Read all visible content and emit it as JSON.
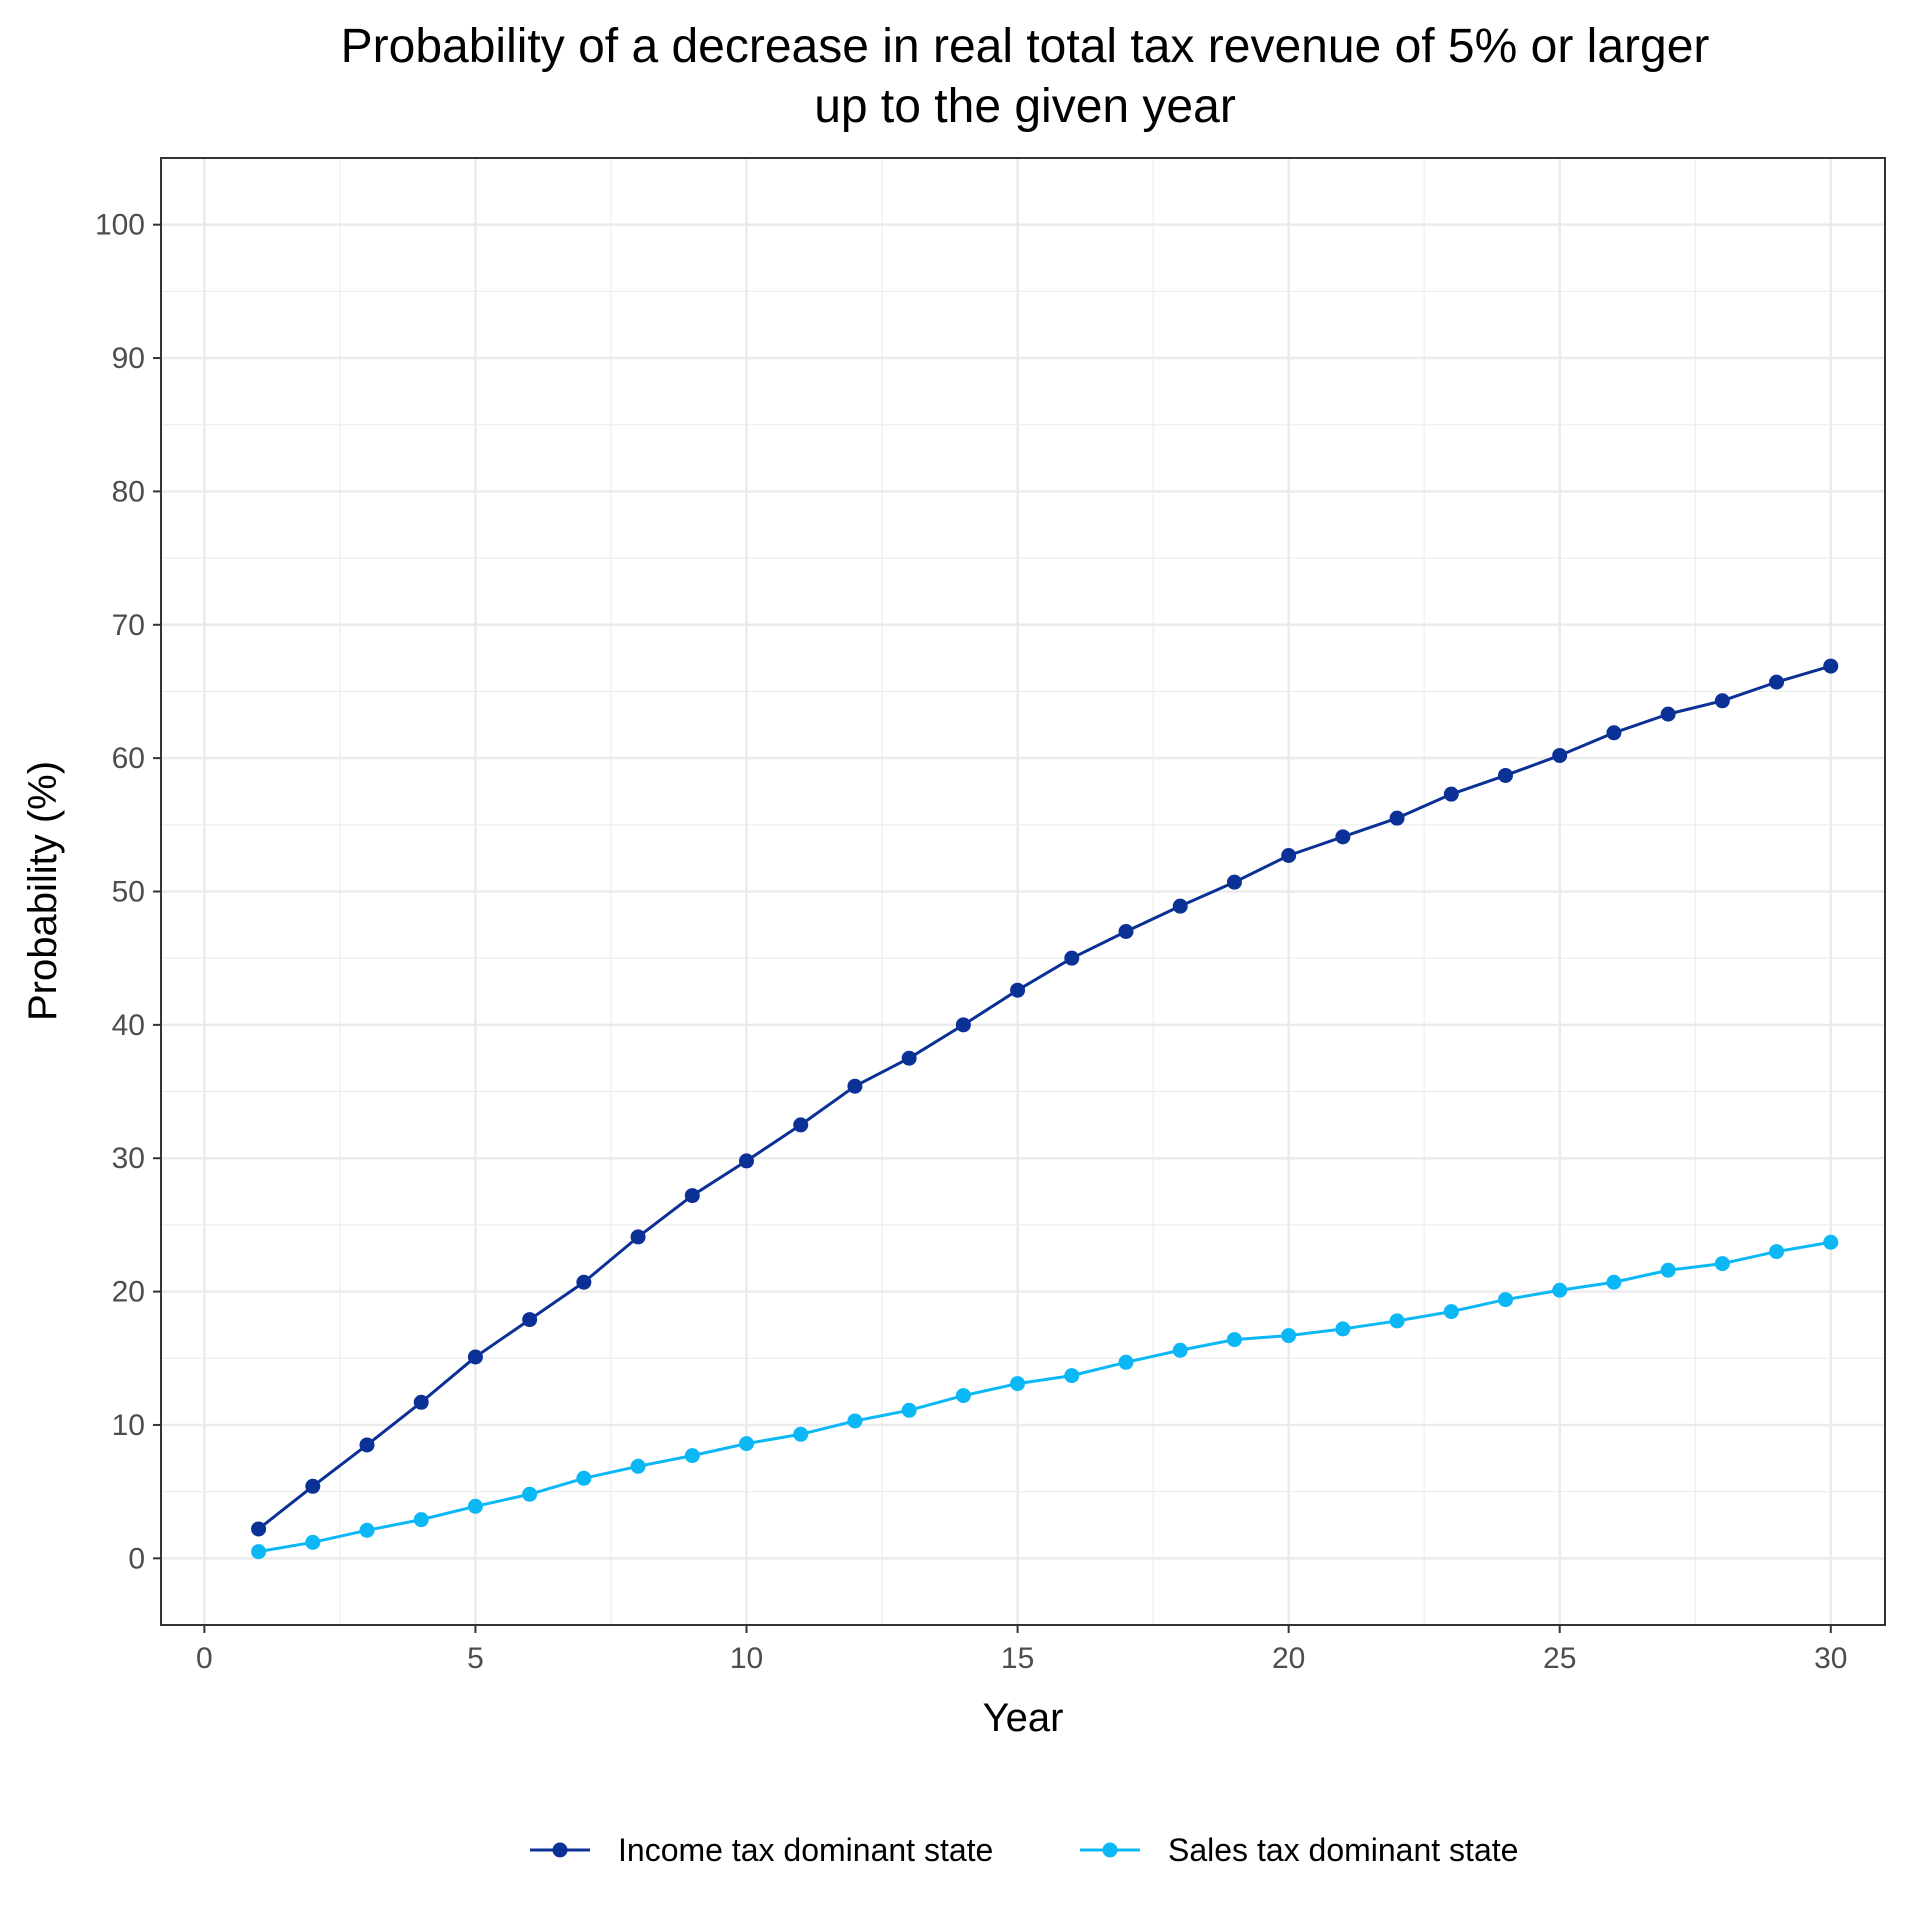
{
  "chart_data": {
    "type": "line",
    "title": "Probability of a decrease in real total tax revenue of 5% or larger",
    "subtitle": "up to the given year",
    "xlabel": "Year",
    "ylabel": "Probability (%)",
    "xlim": [
      -0.8,
      31.0
    ],
    "ylim": [
      -5,
      105
    ],
    "x_ticks": [
      0,
      5,
      10,
      15,
      20,
      25,
      30
    ],
    "y_ticks": [
      0,
      10,
      20,
      30,
      40,
      50,
      60,
      70,
      80,
      90,
      100
    ],
    "grid": true,
    "legend_position": "bottom",
    "x": [
      1,
      2,
      3,
      4,
      5,
      6,
      7,
      8,
      9,
      10,
      11,
      12,
      13,
      14,
      15,
      16,
      17,
      18,
      19,
      20,
      21,
      22,
      23,
      24,
      25,
      26,
      27,
      28,
      29,
      30
    ],
    "series": [
      {
        "name": "Income tax dominant state",
        "color": "#0b3196",
        "values": [
          2.2,
          5.4,
          8.5,
          11.7,
          15.1,
          17.9,
          20.7,
          24.1,
          27.2,
          29.8,
          32.5,
          35.4,
          37.5,
          40.0,
          42.6,
          45.0,
          47.0,
          48.9,
          50.7,
          52.7,
          54.1,
          55.5,
          57.3,
          58.7,
          60.2,
          61.9,
          63.3,
          64.3,
          65.7,
          66.9
        ]
      },
      {
        "name": "Sales tax dominant state",
        "color": "#0bb8f5",
        "values": [
          0.5,
          1.2,
          2.1,
          2.9,
          3.9,
          4.8,
          6.0,
          6.9,
          7.7,
          8.6,
          9.3,
          10.3,
          11.1,
          12.2,
          13.1,
          13.7,
          14.7,
          15.6,
          16.4,
          16.7,
          17.2,
          17.8,
          18.5,
          19.4,
          20.1,
          20.7,
          21.6,
          22.1,
          23.0,
          23.7
        ]
      }
    ]
  }
}
